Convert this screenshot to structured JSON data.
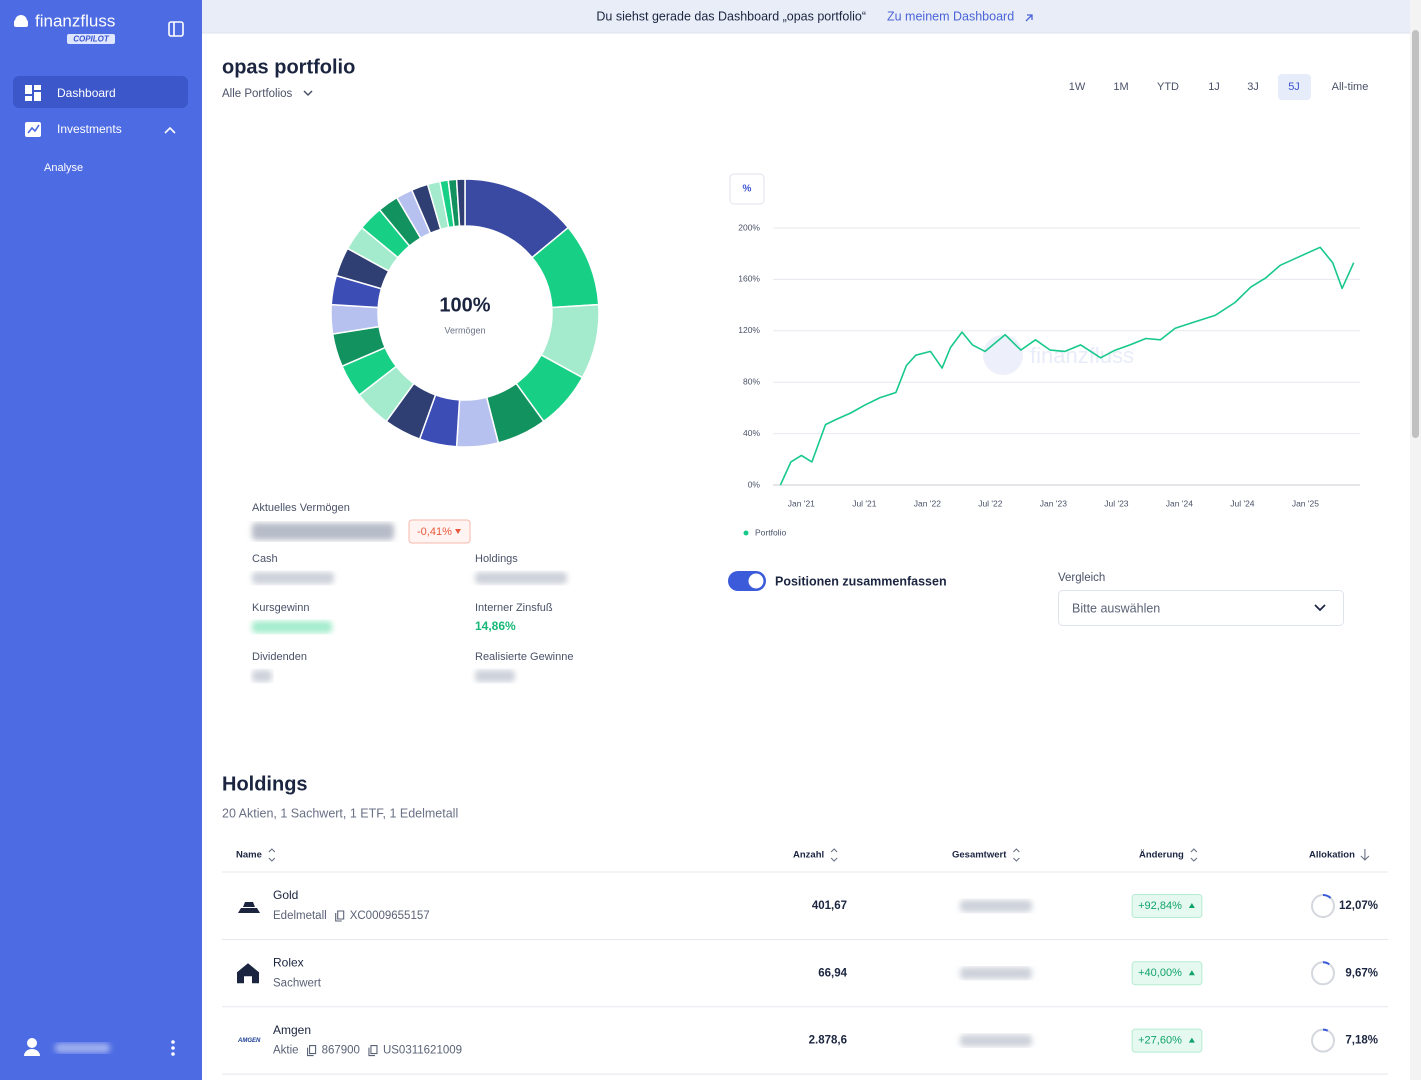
{
  "sidebar": {
    "brand": "finanzfluss",
    "badge": "COPILOT",
    "nav": [
      "Dashboard",
      "Investments",
      "Analyse"
    ],
    "active_nav": 0
  },
  "banner": {
    "text": "Du siehst gerade das Dashboard „opas portfolio“",
    "link": "Zu meinem Dashboard"
  },
  "header": {
    "title": "opas portfolio",
    "subtitle": "Alle Portfolios",
    "ranges": [
      "1W",
      "1M",
      "YTD",
      "1J",
      "3J",
      "5J",
      "All-time"
    ],
    "active_range": 5
  },
  "chart_data": [
    {
      "type": "donut",
      "center_value": "100%",
      "center_label": "Vermögen",
      "values": [
        14,
        10,
        9,
        7,
        6,
        5,
        4.5,
        4.5,
        4.5,
        4,
        4,
        3.5,
        3.5,
        3.5,
        3,
        3,
        2.5,
        2,
        2,
        1.5,
        1,
        1,
        1
      ],
      "colors": [
        "#3a4aa3",
        "#17cf85",
        "#a3ebcc",
        "#17cf85",
        "#12925f",
        "#b6c1ef",
        "#3c4db5",
        "#2f3f74",
        "#a3ebcc",
        "#17cf85",
        "#12925f",
        "#b6c1ef",
        "#3c4db5",
        "#2f3f74",
        "#a3ebcc",
        "#17cf85",
        "#12925f",
        "#b6c1ef",
        "#2f3f74",
        "#a3ebcc",
        "#17cf85",
        "#12925f",
        "#2f3f74"
      ]
    },
    {
      "type": "line",
      "unit_button": "%",
      "watermark": "finanzfluss",
      "x": [
        -2,
        -1,
        0,
        1,
        2.3,
        3.3,
        4.7,
        6,
        7.5,
        9,
        10,
        10.9,
        12.3,
        13.4,
        14.2,
        15.3,
        16.3,
        17.5,
        19.4,
        20.9,
        22.3,
        23.7,
        25.1,
        26.6,
        28.5,
        29.9,
        31.3,
        32.8,
        34.2,
        35.6,
        37.5,
        39.4,
        41.3,
        42.8,
        44.2,
        45.6,
        47.5,
        49.4,
        50.6,
        51.5,
        52.6
      ],
      "series": [
        {
          "name": "Portfolio",
          "color": "#17c98a",
          "values": [
            0,
            18,
            23,
            18,
            47,
            51,
            56,
            62,
            68,
            72,
            93,
            101,
            104,
            91,
            107,
            119,
            109,
            104,
            117,
            105,
            113,
            105,
            104,
            109,
            99,
            105,
            109,
            114,
            113,
            122,
            127,
            132,
            142,
            154,
            161,
            171,
            178,
            185,
            173,
            153,
            173
          ]
        }
      ],
      "xlim": [
        -2.7,
        53.2
      ],
      "xticks": [
        {
          "value": 0,
          "label": "Jan '21"
        },
        {
          "value": 6,
          "label": "Jul '21"
        },
        {
          "value": 12,
          "label": "Jan '22"
        },
        {
          "value": 18,
          "label": "Jul '22"
        },
        {
          "value": 24,
          "label": "Jan '23"
        },
        {
          "value": 30,
          "label": "Jul '23"
        },
        {
          "value": 36,
          "label": "Jan '24"
        },
        {
          "value": 42,
          "label": "Jul '24"
        },
        {
          "value": 48,
          "label": "Jan '25"
        }
      ],
      "ylim": [
        0,
        200
      ],
      "yticks": [
        {
          "value": 0,
          "label": "0%"
        },
        {
          "value": 40,
          "label": "40%"
        },
        {
          "value": 80,
          "label": "80%"
        },
        {
          "value": 120,
          "label": "120%"
        },
        {
          "value": 160,
          "label": "160%"
        },
        {
          "value": 200,
          "label": "200%"
        }
      ],
      "grid": true
    }
  ],
  "stats": {
    "current_label": "Aktuelles Vermögen",
    "change": "-0,41%",
    "cash": "Cash",
    "holdings": "Holdings",
    "gain": "Kursgewinn",
    "irr_label": "Interner Zinsfuß",
    "irr": "14,86%",
    "dividends": "Dividenden",
    "realized": "Realisierte Gewinne"
  },
  "controls": {
    "toggle": "Positionen zusammenfassen",
    "compare_label": "Vergleich",
    "compare_placeholder": "Bitte auswählen"
  },
  "holdings": {
    "title": "Holdings",
    "subtitle": "20 Aktien, 1 Sachwert, 1 ETF, 1 Edelmetall",
    "columns": [
      "Name",
      "Anzahl",
      "Gesamtwert",
      "Änderung",
      "Allokation"
    ],
    "rows": [
      {
        "name": "Gold",
        "kind": "Edelmetall",
        "ids": [
          "XC0009655157"
        ],
        "count": "401,67",
        "change": "+92,84%",
        "allocation": {
          "value": 12.07,
          "label": "12,07%"
        }
      },
      {
        "name": "Rolex",
        "kind": "Sachwert",
        "ids": [],
        "count": "66,94",
        "change": "+40,00%",
        "allocation": {
          "value": 9.67,
          "label": "9,67%"
        }
      },
      {
        "name": "Amgen",
        "logo": "AMGEN",
        "kind": "Aktie",
        "ids": [
          "867900",
          "US0311621009"
        ],
        "count": "2.878,6",
        "change": "+27,60%",
        "allocation": {
          "value": 7.18,
          "label": "7,18%"
        }
      }
    ]
  }
}
